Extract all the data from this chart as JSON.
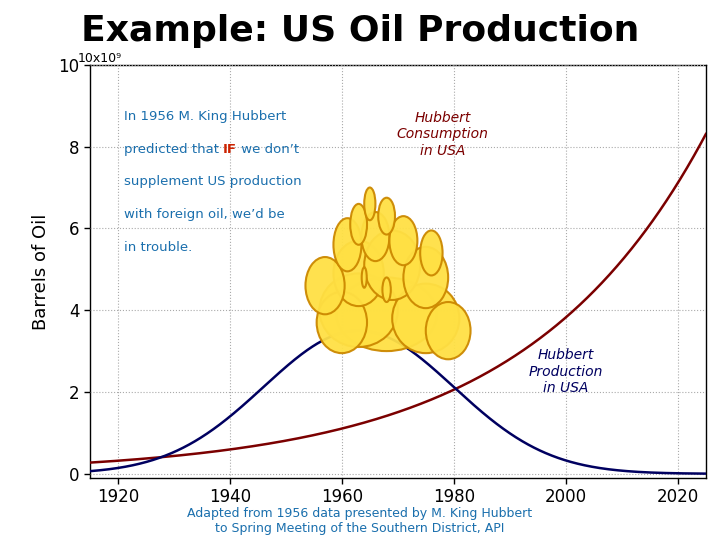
{
  "title": "Example: US Oil Production",
  "ylabel": "Barrels of Oil",
  "y_unit_label": "10x10⁹",
  "x_ticks": [
    1920,
    1940,
    1960,
    1980,
    2000,
    2020
  ],
  "y_ticks": [
    0,
    2,
    4,
    6,
    8,
    10
  ],
  "xlim": [
    1915,
    2025
  ],
  "ylim": [
    -0.1,
    10.0
  ],
  "consumption_color": "#7B0000",
  "production_color": "#000060",
  "ann_blue": "#1a6fad",
  "ann_red": "#CC2200",
  "hubbert_consumption_label": "Hubbert\nConsumption\nin USA",
  "hubbert_production_label": "Hubbert\nProduction\nin USA",
  "footer_text": "Adapted from 1956 data presented by M. King Hubbert\nto Spring Meeting of the Southern District, API",
  "footer_color": "#1a6fad",
  "cloud_facecolor": "#FFE044",
  "cloud_edgecolor": "#CC8800",
  "grid_color": "#aaaaaa",
  "bg": "#ffffff",
  "cons_a": 0.32,
  "cons_b": 0.031,
  "cons_ref": 1920,
  "prod_peak": 1963,
  "prod_peak_val": 3.5,
  "prod_sigma": 17,
  "blobs": [
    [
      1968,
      3.9,
      18,
      1.8,
      3
    ],
    [
      1963,
      4.0,
      14,
      1.8,
      3
    ],
    [
      1975,
      3.8,
      12,
      1.7,
      3
    ],
    [
      1960,
      3.7,
      9,
      1.5,
      3
    ],
    [
      1979,
      3.5,
      8,
      1.4,
      3
    ],
    [
      1963,
      4.9,
      9,
      1.6,
      4
    ],
    [
      1969,
      5.1,
      10,
      1.7,
      4
    ],
    [
      1975,
      4.8,
      8,
      1.5,
      4
    ],
    [
      1957,
      4.6,
      7,
      1.4,
      4
    ],
    [
      1961,
      5.6,
      5,
      1.3,
      5
    ],
    [
      1966,
      5.8,
      5,
      1.2,
      5
    ],
    [
      1971,
      5.7,
      5,
      1.2,
      5
    ],
    [
      1976,
      5.4,
      4,
      1.1,
      5
    ],
    [
      1963,
      6.1,
      3,
      1.0,
      6
    ],
    [
      1968,
      6.3,
      3,
      0.9,
      6
    ],
    [
      1965,
      6.6,
      2,
      0.8,
      7
    ],
    [
      1968,
      4.5,
      1.5,
      0.6,
      8
    ],
    [
      1964,
      4.8,
      0.9,
      0.5,
      8
    ]
  ],
  "ann_x": 1921,
  "ann_y": 8.9,
  "ann_lh": 0.8,
  "ann_fs": 9.5
}
